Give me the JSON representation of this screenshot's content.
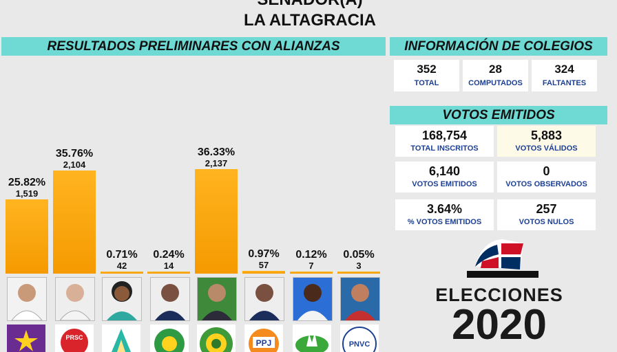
{
  "header": {
    "title_line1": "SENADOR(A)",
    "title_line2": "LA ALTAGRACIA"
  },
  "results_banner": "RESULTADOS PRELIMINARES CON ALIANZAS",
  "colegios_banner": "INFORMACIÓN DE COLEGIOS",
  "colegios": [
    {
      "value": "352",
      "label": "TOTAL"
    },
    {
      "value": "28",
      "label": "COMPUTADOS"
    },
    {
      "value": "324",
      "label": "FALTANTES"
    }
  ],
  "votos_banner": "VOTOS EMITIDOS",
  "votos": [
    {
      "value": "168,754",
      "label": "TOTAL INSCRITOS"
    },
    {
      "value": "5,883",
      "label": "VOTOS VÁLIDOS"
    },
    {
      "value": "6,140",
      "label": "VOTOS EMITIDOS"
    },
    {
      "value": "0",
      "label": "VOTOS OBSERVADOS"
    },
    {
      "value": "3.64%",
      "label": "% VOTOS EMITIDOS"
    },
    {
      "value": "257",
      "label": "VOTOS NULOS"
    }
  ],
  "footer": {
    "word": "ELECCIONES",
    "year": "2020"
  },
  "colors": {
    "bar": "#f5a300",
    "banner": "#6fd9d4",
    "label": "#1c3f94"
  },
  "chart_data": {
    "type": "bar",
    "categories": [
      "1",
      "2",
      "3",
      "4",
      "5",
      "6",
      "7",
      "8"
    ],
    "percent_labels": [
      "25.82%",
      "35.76%",
      "0.71%",
      "0.24%",
      "36.33%",
      "0.97%",
      "0.12%",
      "0.05%"
    ],
    "count_labels": [
      "1,519",
      "2,104",
      "42",
      "14",
      "2,137",
      "57",
      "7",
      "3"
    ],
    "values": [
      1519,
      2104,
      42,
      14,
      2137,
      57,
      7,
      3
    ],
    "ylim": [
      0,
      2137
    ],
    "grid": false
  },
  "party_logos": [
    "",
    "PRSC",
    "",
    "",
    "",
    "PPJ",
    "",
    "PNVC"
  ]
}
